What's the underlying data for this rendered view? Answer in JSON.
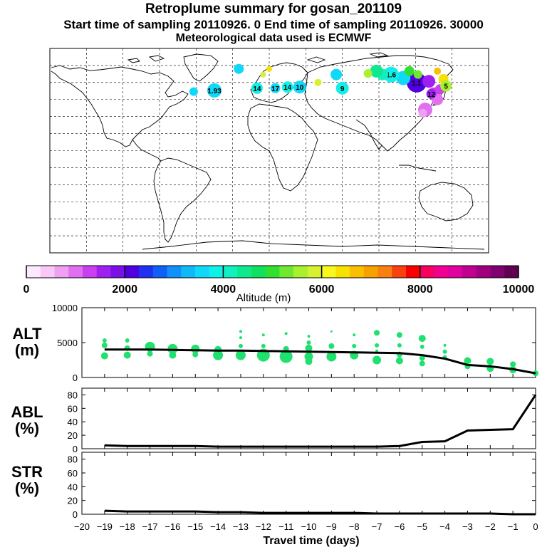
{
  "header": {
    "title": "Retroplume summary for gosan_201109",
    "sampling": "Start time of sampling 20110926.    0     End time of sampling 20110926. 30000",
    "met": "Meteorological data used is ECMWF"
  },
  "colorbar": {
    "colors": [
      "#fde8fd",
      "#f8c8f8",
      "#f0a0f0",
      "#e070f0",
      "#c840f0",
      "#a020f0",
      "#7a10e8",
      "#5000e0",
      "#2030f0",
      "#1060f8",
      "#1090f8",
      "#10b8f8",
      "#10d8f8",
      "#10f0e8",
      "#10f0c0",
      "#10e890",
      "#10e060",
      "#30e030",
      "#70e830",
      "#a8f030",
      "#d8f030",
      "#f8f820",
      "#f8e000",
      "#f8c000",
      "#f8a000",
      "#f88010",
      "#f84010",
      "#f80000",
      "#f80060",
      "#f00090",
      "#e000a0",
      "#c00090",
      "#a00080",
      "#800070",
      "#600050"
    ],
    "tick_labels": [
      "0",
      "2000",
      "4000",
      "6000",
      "8000",
      "10000"
    ],
    "tick_values": [
      0,
      2000,
      4000,
      6000,
      8000,
      10000
    ],
    "max": 10000,
    "label": "Altitude (m)"
  },
  "map": {
    "markers": [
      {
        "lon": 121,
        "lat": 60,
        "alt": 2100,
        "size": 14,
        "label": "1.1"
      },
      {
        "lon": 110,
        "lat": 64,
        "alt": 3600,
        "size": 10,
        "label": ""
      },
      {
        "lon": 100,
        "lat": 67,
        "alt": 3900,
        "size": 11,
        "label": "1.6"
      },
      {
        "lon": 93,
        "lat": 67,
        "alt": 4200,
        "size": 8,
        "label": ""
      },
      {
        "lon": 88,
        "lat": 70,
        "alt": 4500,
        "size": 9,
        "label": ""
      },
      {
        "lon": 81,
        "lat": 68,
        "alt": 5500,
        "size": 6,
        "label": ""
      },
      {
        "lon": 115,
        "lat": 70,
        "alt": 5000,
        "size": 7,
        "label": ""
      },
      {
        "lon": 122,
        "lat": 67,
        "alt": 5200,
        "size": 6,
        "label": ""
      },
      {
        "lon": 131,
        "lat": 61,
        "alt": 1700,
        "size": 9,
        "label": ""
      },
      {
        "lon": 135,
        "lat": 50,
        "alt": 1200,
        "size": 9,
        "label": ""
      },
      {
        "lon": 138,
        "lat": 45,
        "alt": 900,
        "size": 8,
        "label": ""
      },
      {
        "lon": 128,
        "lat": 36,
        "alt": 1000,
        "size": 10,
        "label": ""
      },
      {
        "lon": 126,
        "lat": 33,
        "alt": 700,
        "size": 6,
        "label": ""
      },
      {
        "lon": 140,
        "lat": 54,
        "alt": 1300,
        "size": 7,
        "label": ""
      },
      {
        "lon": 143,
        "lat": 63,
        "alt": 6500,
        "size": 7,
        "label": ""
      },
      {
        "lon": 145,
        "lat": 57,
        "alt": 5600,
        "size": 8,
        "label": "5"
      },
      {
        "lon": 138,
        "lat": 70,
        "alt": 6800,
        "size": 5,
        "label": ""
      },
      {
        "lon": 133,
        "lat": 50,
        "alt": 1500,
        "size": 7,
        "label": "12"
      },
      {
        "lon": 60,
        "lat": 55,
        "alt": 3800,
        "size": 9,
        "label": "9"
      },
      {
        "lon": 55,
        "lat": 67,
        "alt": 3700,
        "size": 8,
        "label": ""
      },
      {
        "lon": 25,
        "lat": 56,
        "alt": 3600,
        "size": 9,
        "label": "10"
      },
      {
        "lon": 15,
        "lat": 56,
        "alt": 3800,
        "size": 8,
        "label": "14"
      },
      {
        "lon": 5,
        "lat": 55,
        "alt": 3500,
        "size": 7,
        "label": "17"
      },
      {
        "lon": -10,
        "lat": 55,
        "alt": 3800,
        "size": 8,
        "label": "14"
      },
      {
        "lon": -45,
        "lat": 53,
        "alt": 3700,
        "size": 10,
        "label": "1.93"
      },
      {
        "lon": -62,
        "lat": 52,
        "alt": 3600,
        "size": 6,
        "label": ""
      },
      {
        "lon": -25,
        "lat": 72,
        "alt": 3600,
        "size": 7,
        "label": ""
      },
      {
        "lon": 40,
        "lat": 60,
        "alt": 5800,
        "size": 5,
        "label": ""
      },
      {
        "lon": -5,
        "lat": 67,
        "alt": 5800,
        "size": 4,
        "label": ""
      },
      {
        "lon": 0,
        "lat": 72,
        "alt": 6400,
        "size": 4,
        "label": ""
      }
    ]
  },
  "chart_data": [
    {
      "type": "line",
      "name": "altitude",
      "ylabel": "ALT (m)",
      "ylim": [
        0,
        10000
      ],
      "yticks": [
        0,
        5000,
        10000
      ],
      "x": [
        -19,
        -18,
        -17,
        -16,
        -15,
        -14,
        -13,
        -12,
        -11,
        -10,
        -9,
        -8,
        -7,
        -6,
        -5,
        -4,
        -3,
        -2,
        -1,
        0
      ],
      "values": [
        4000,
        4000,
        4000,
        3950,
        3900,
        3850,
        3850,
        3800,
        3750,
        3700,
        3650,
        3600,
        3550,
        3500,
        3200,
        2700,
        1800,
        1600,
        1200,
        600
      ],
      "spread_points": [
        {
          "x": -19,
          "y": 5300,
          "s": 3
        },
        {
          "x": -19,
          "y": 4600,
          "s": 4
        },
        {
          "x": -19,
          "y": 3100,
          "s": 5
        },
        {
          "x": -18,
          "y": 5300,
          "s": 3
        },
        {
          "x": -18,
          "y": 4200,
          "s": 4
        },
        {
          "x": -18,
          "y": 3200,
          "s": 5
        },
        {
          "x": -17,
          "y": 4400,
          "s": 7
        },
        {
          "x": -17,
          "y": 3400,
          "s": 4
        },
        {
          "x": -16,
          "y": 4100,
          "s": 7
        },
        {
          "x": -16,
          "y": 3200,
          "s": 5
        },
        {
          "x": -15,
          "y": 4100,
          "s": 6
        },
        {
          "x": -15,
          "y": 3300,
          "s": 4
        },
        {
          "x": -14,
          "y": 4000,
          "s": 5
        },
        {
          "x": -14,
          "y": 3200,
          "s": 7
        },
        {
          "x": -13,
          "y": 6600,
          "s": 2
        },
        {
          "x": -13,
          "y": 5700,
          "s": 2
        },
        {
          "x": -13,
          "y": 4500,
          "s": 3
        },
        {
          "x": -13,
          "y": 3200,
          "s": 7
        },
        {
          "x": -12,
          "y": 6100,
          "s": 2
        },
        {
          "x": -12,
          "y": 4500,
          "s": 3
        },
        {
          "x": -12,
          "y": 3200,
          "s": 9
        },
        {
          "x": -11,
          "y": 6300,
          "s": 2
        },
        {
          "x": -11,
          "y": 4100,
          "s": 4
        },
        {
          "x": -11,
          "y": 3000,
          "s": 9
        },
        {
          "x": -10,
          "y": 5900,
          "s": 2
        },
        {
          "x": -10,
          "y": 5000,
          "s": 3
        },
        {
          "x": -10,
          "y": 4200,
          "s": 5
        },
        {
          "x": -10,
          "y": 3000,
          "s": 6
        },
        {
          "x": -10,
          "y": 2300,
          "s": 5
        },
        {
          "x": -9,
          "y": 6600,
          "s": 1.5
        },
        {
          "x": -9,
          "y": 4500,
          "s": 4
        },
        {
          "x": -9,
          "y": 3000,
          "s": 7
        },
        {
          "x": -8,
          "y": 6100,
          "s": 2
        },
        {
          "x": -8,
          "y": 4500,
          "s": 3
        },
        {
          "x": -8,
          "y": 3200,
          "s": 6
        },
        {
          "x": -7,
          "y": 6400,
          "s": 4
        },
        {
          "x": -7,
          "y": 4600,
          "s": 3
        },
        {
          "x": -7,
          "y": 3800,
          "s": 2
        },
        {
          "x": -7,
          "y": 2500,
          "s": 6
        },
        {
          "x": -6,
          "y": 6100,
          "s": 4
        },
        {
          "x": -6,
          "y": 4600,
          "s": 3
        },
        {
          "x": -6,
          "y": 3300,
          "s": 4
        },
        {
          "x": -6,
          "y": 2400,
          "s": 5
        },
        {
          "x": -5,
          "y": 5600,
          "s": 5
        },
        {
          "x": -5,
          "y": 4400,
          "s": 3
        },
        {
          "x": -5,
          "y": 2800,
          "s": 4
        },
        {
          "x": -5,
          "y": 2000,
          "s": 4
        },
        {
          "x": -4,
          "y": 4600,
          "s": 2
        },
        {
          "x": -4,
          "y": 3700,
          "s": 3
        },
        {
          "x": -4,
          "y": 2900,
          "s": 3
        },
        {
          "x": -3,
          "y": 2400,
          "s": 5
        },
        {
          "x": -3,
          "y": 1600,
          "s": 4
        },
        {
          "x": -2,
          "y": 2300,
          "s": 5
        },
        {
          "x": -2,
          "y": 1300,
          "s": 5
        },
        {
          "x": -1,
          "y": 1900,
          "s": 4
        },
        {
          "x": -1,
          "y": 1100,
          "s": 5
        },
        {
          "x": 0,
          "y": 600,
          "s": 4
        }
      ]
    },
    {
      "type": "line",
      "name": "abl",
      "ylabel": "ABL (%)",
      "ylim": [
        0,
        90
      ],
      "yticks": [
        0,
        20,
        40,
        60,
        80
      ],
      "x": [
        -19,
        -18,
        -17,
        -16,
        -15,
        -14,
        -13,
        -12,
        -11,
        -10,
        -9,
        -8,
        -7,
        -6,
        -5,
        -4,
        -3,
        -2,
        -1,
        0
      ],
      "values": [
        5,
        4,
        4,
        4,
        4,
        3,
        3,
        3,
        3,
        3,
        3,
        3,
        3,
        4,
        10,
        11,
        27,
        28,
        29,
        80
      ]
    },
    {
      "type": "line",
      "name": "str",
      "ylabel": "STR (%)",
      "ylim": [
        0,
        90
      ],
      "yticks": [
        0,
        20,
        40,
        60,
        80
      ],
      "x": [
        -19,
        -18,
        -17,
        -16,
        -15,
        -14,
        -13,
        -12,
        -11,
        -10,
        -9,
        -8,
        -7,
        -6,
        -5,
        -4,
        -3,
        -2,
        -1,
        0
      ],
      "values": [
        5,
        4,
        4,
        4,
        4,
        3,
        3,
        2,
        2,
        2,
        2,
        2,
        1,
        1,
        1,
        1,
        1,
        1,
        0,
        0
      ]
    }
  ],
  "panels": {
    "alt": {
      "l1": "ALT",
      "l2": "(m)"
    },
    "abl": {
      "l1": "ABL",
      "l2": "(%)"
    },
    "str": {
      "l1": "STR",
      "l2": "(%)"
    }
  },
  "xaxis": {
    "ticks": [
      -20,
      -19,
      -18,
      -17,
      -16,
      -15,
      -14,
      -13,
      -12,
      -11,
      -10,
      -9,
      -8,
      -7,
      -6,
      -5,
      -4,
      -3,
      -2,
      -1,
      0
    ],
    "label": "Travel time (days)"
  }
}
